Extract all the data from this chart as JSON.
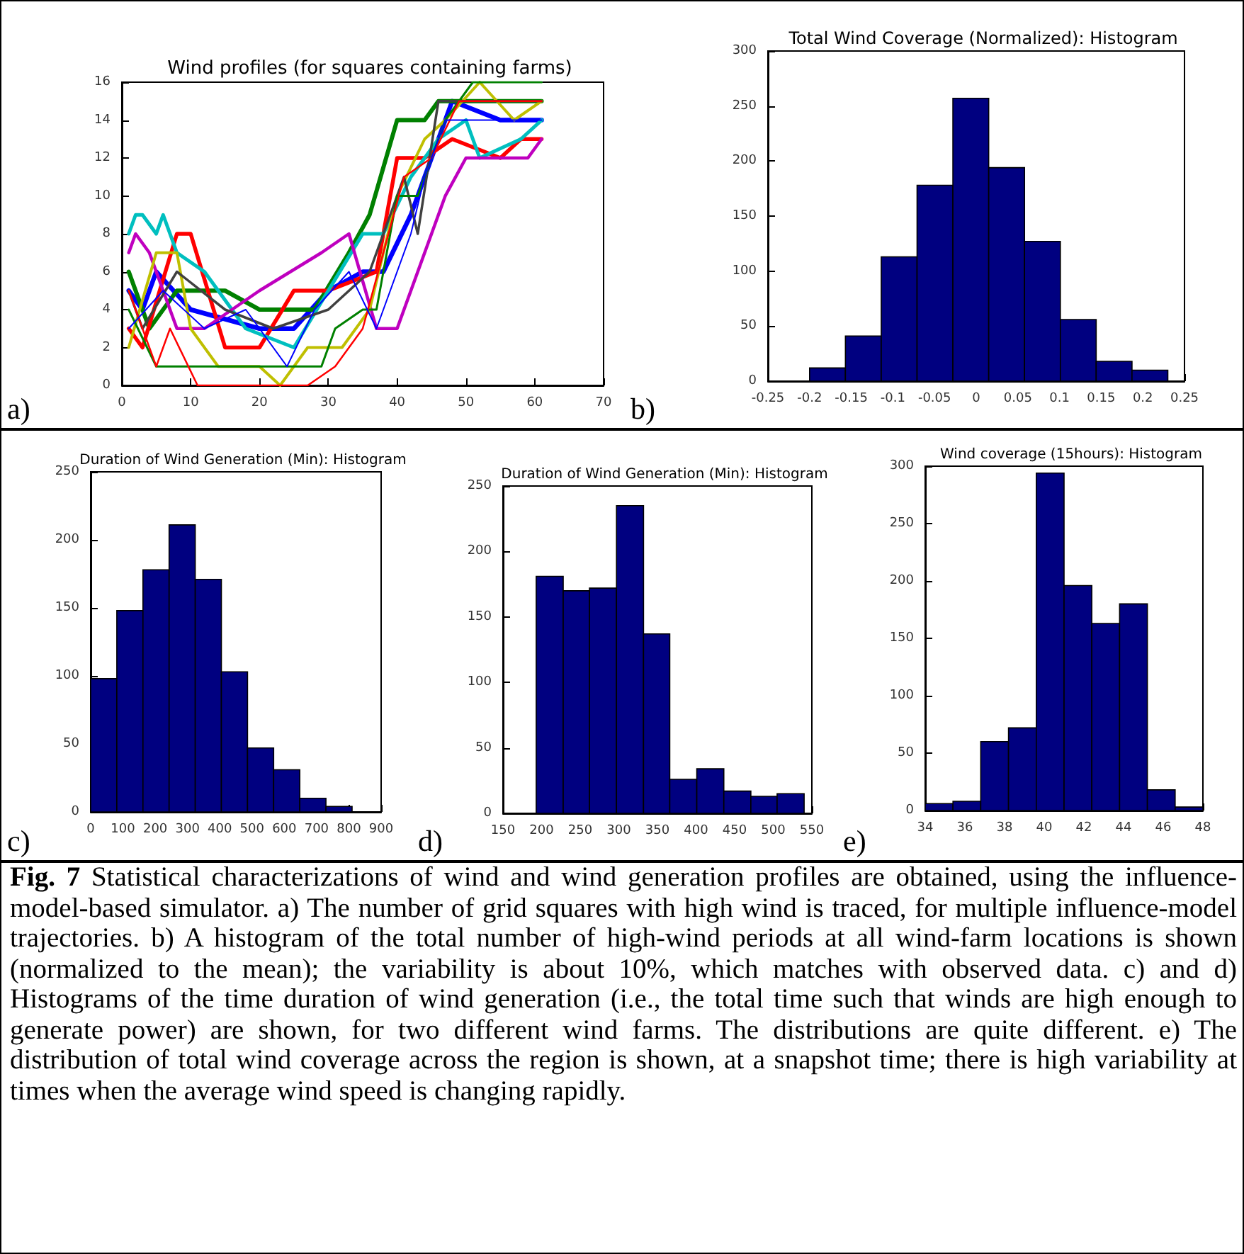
{
  "chart_data": [
    {
      "type": "line",
      "title": "Wind profiles (for squares containing farms)",
      "annotations": [
        "a)"
      ],
      "xlim": [
        0,
        70
      ],
      "xticks": [
        0,
        10,
        20,
        30,
        40,
        50,
        60,
        70
      ],
      "ylim": [
        0,
        16
      ],
      "yticks": [
        0,
        2,
        4,
        6,
        8,
        10,
        12,
        14,
        16
      ],
      "grid": false,
      "marker": "none",
      "line_style": "solid",
      "series": [
        {
          "color": "#0000ff",
          "x": [
            1,
            3,
            5,
            10,
            20,
            25,
            30,
            35,
            38,
            42,
            45,
            48,
            55,
            61
          ],
          "values": [
            5,
            4,
            6,
            4,
            3,
            3,
            5,
            6,
            6,
            9,
            12,
            15,
            14,
            14
          ]
        },
        {
          "color": "#008000",
          "x": [
            1,
            4,
            8,
            15,
            20,
            28,
            33,
            36,
            40,
            44,
            46,
            61
          ],
          "values": [
            6,
            3,
            5,
            5,
            4,
            4,
            7,
            9,
            14,
            14,
            15,
            15
          ]
        },
        {
          "color": "#ff0000",
          "x": [
            1,
            3,
            8,
            10,
            15,
            20,
            25,
            30,
            37,
            40,
            44,
            48,
            55,
            58,
            61
          ],
          "values": [
            3,
            2,
            8,
            8,
            2,
            2,
            5,
            5,
            6,
            12,
            12,
            13,
            12,
            13,
            13
          ]
        },
        {
          "color": "#00bfbf",
          "x": [
            1,
            2,
            3,
            5,
            6,
            8,
            12,
            18,
            25,
            30,
            35,
            38,
            42,
            46,
            50,
            52,
            58,
            61
          ],
          "values": [
            8,
            9,
            9,
            8,
            9,
            7,
            6,
            3,
            2,
            5,
            8,
            8,
            11,
            13,
            14,
            12,
            13,
            14
          ]
        },
        {
          "color": "#bf00bf",
          "x": [
            1,
            2,
            4,
            8,
            12,
            20,
            29,
            33,
            37,
            40,
            43,
            47,
            50,
            59,
            61
          ],
          "values": [
            7,
            8,
            7,
            3,
            3,
            5,
            7,
            8,
            3,
            3,
            6,
            10,
            12,
            12,
            13
          ]
        },
        {
          "color": "#bfbf00",
          "x": [
            1,
            5,
            8,
            10,
            14,
            20,
            23,
            27,
            32,
            36,
            40,
            44,
            47,
            52,
            57,
            61
          ],
          "values": [
            2,
            7,
            7,
            3,
            1,
            1,
            0,
            2,
            2,
            4,
            10,
            13,
            14,
            16,
            14,
            15
          ]
        },
        {
          "color": "#404040",
          "x": [
            1,
            3,
            8,
            15,
            22,
            30,
            36,
            39,
            41,
            43,
            46,
            49,
            61
          ],
          "values": [
            5,
            3,
            6,
            4,
            3,
            4,
            6,
            9,
            11,
            8,
            15,
            15,
            15
          ]
        },
        {
          "color": "#008000",
          "x": [
            1,
            5,
            10,
            18,
            24,
            29,
            31,
            35,
            37,
            40,
            43,
            47,
            51,
            60,
            61
          ],
          "values": [
            4,
            1,
            1,
            1,
            1,
            1,
            3,
            4,
            4,
            10,
            10,
            14,
            16,
            16,
            16
          ]
        },
        {
          "color": "#ff0000",
          "x": [
            1,
            4,
            5,
            7,
            11,
            20,
            27,
            31,
            35,
            38,
            41,
            45,
            49,
            55,
            61
          ],
          "values": [
            5,
            2,
            1,
            3,
            0,
            0,
            0,
            1,
            3,
            7,
            11,
            12,
            15,
            15,
            15
          ]
        },
        {
          "color": "#0000ff",
          "x": [
            1,
            6,
            12,
            18,
            24,
            28,
            33,
            37,
            39,
            42,
            44,
            47,
            61
          ],
          "values": [
            3,
            5,
            3,
            4,
            1,
            4,
            6,
            3,
            5,
            8,
            11,
            14,
            14
          ]
        }
      ]
    },
    {
      "type": "histogram",
      "title": "Total Wind Coverage (Normalized): Histogram",
      "annotations": [
        "b)"
      ],
      "color": "#000080",
      "grid": false,
      "bins": [
        -0.2,
        -0.157,
        -0.114,
        -0.071,
        -0.028,
        0.015,
        0.058,
        0.101,
        0.144,
        0.187,
        0.23
      ],
      "values": [
        12,
        41,
        113,
        178,
        257,
        194,
        127,
        56,
        18,
        10
      ],
      "xlim": [
        -0.25,
        0.25
      ],
      "xticks": [
        -0.25,
        -0.2,
        -0.15,
        -0.1,
        -0.05,
        0,
        0.05,
        0.1,
        0.15,
        0.2,
        0.25
      ],
      "ylim": [
        0,
        300
      ],
      "yticks": [
        0,
        50,
        100,
        150,
        200,
        250,
        300
      ]
    },
    {
      "type": "histogram",
      "title": "Duration of Wind Generation (Min): Histogram",
      "annotations": [
        "c)"
      ],
      "color": "#000080",
      "grid": false,
      "bins": [
        0,
        81,
        162,
        243,
        324,
        405,
        486,
        567,
        648,
        729,
        810
      ],
      "values": [
        98,
        148,
        178,
        211,
        171,
        103,
        47,
        31,
        10,
        4
      ],
      "xlim": [
        0,
        900
      ],
      "xticks": [
        0,
        100,
        200,
        300,
        400,
        500,
        600,
        700,
        800,
        900
      ],
      "ylim": [
        0,
        250
      ],
      "yticks": [
        0,
        50,
        100,
        150,
        200,
        250
      ]
    },
    {
      "type": "histogram",
      "title": "Duration of Wind Generation (Min): Histogram",
      "annotations": [
        "d)"
      ],
      "color": "#000080",
      "grid": false,
      "bins": [
        193,
        228,
        262,
        297,
        332,
        366,
        401,
        436,
        471,
        505,
        540
      ],
      "values": [
        181,
        170,
        172,
        235,
        137,
        26,
        34,
        17,
        13,
        15
      ],
      "xlim": [
        150,
        550
      ],
      "xticks": [
        150,
        200,
        250,
        300,
        350,
        400,
        450,
        500,
        550
      ],
      "ylim": [
        0,
        250
      ],
      "yticks": [
        0,
        50,
        100,
        150,
        200,
        250
      ]
    },
    {
      "type": "histogram",
      "title": "Wind coverage (15hours): Histogram",
      "annotations": [
        "e)"
      ],
      "color": "#000080",
      "grid": false,
      "bins": [
        34,
        35.4,
        36.8,
        38.2,
        39.6,
        41,
        42.4,
        43.8,
        45.2,
        46.6,
        48
      ],
      "values": [
        6,
        8,
        60,
        72,
        294,
        196,
        163,
        180,
        18,
        3
      ],
      "xlim": [
        34,
        48
      ],
      "xticks": [
        34,
        36,
        38,
        40,
        42,
        44,
        46,
        48
      ],
      "ylim": [
        0,
        300
      ],
      "yticks": [
        0,
        50,
        100,
        150,
        200,
        250,
        300
      ]
    },
    {
      "type": "other",
      "annotations": [
        "Fig. 7",
        "Statistical characterizations of wind and wind generation profiles are obtained, using the influence-model-based simulator.  a) The number of grid squares with high wind is traced, for multiple influence-model trajectories.  b) A histogram of the total number of high-wind periods at all wind-farm locations is shown (normalized to the mean); the variability is about 10%, which matches with observed data. c) and d) Histograms of the time duration of wind generation (i.e., the total time such that winds are high enough to generate power) are shown, for two different wind farms.  The distributions are quite different. e) The distribution of total wind coverage across the region is shown, at a snapshot time; there is high variability at times when the average wind speed is changing rapidly."
      ]
    }
  ]
}
